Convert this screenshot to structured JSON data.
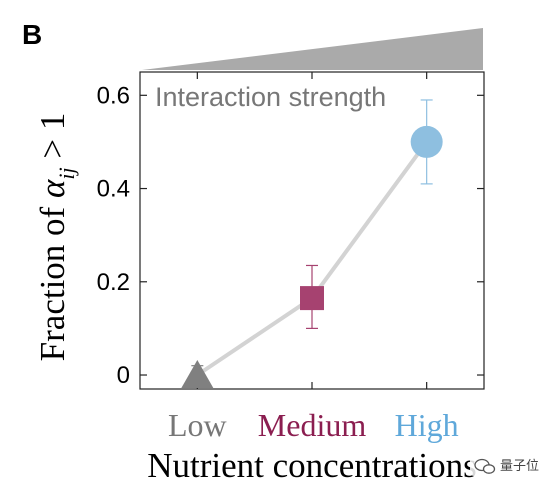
{
  "panel_label": "B",
  "chart_data": {
    "type": "line",
    "categories": [
      "Low",
      "Medium",
      "High"
    ],
    "x": [
      1,
      2,
      3
    ],
    "values": [
      0.0,
      0.165,
      0.5
    ],
    "error_low": [
      0.02,
      0.065,
      0.09
    ],
    "error_high": [
      0.02,
      0.07,
      0.09
    ],
    "markers": [
      "triangle",
      "square",
      "circle"
    ],
    "colors": [
      "#808080",
      "#A64270",
      "#8EBFE0"
    ],
    "line_color": "#D3D3D3",
    "label_colors": [
      "#777777",
      "#8B1E50",
      "#5FA8DA"
    ],
    "ylim": [
      -0.03,
      0.65
    ],
    "yticks": [
      0,
      0.2,
      0.4,
      0.6
    ],
    "ytick_labels": [
      "0",
      "0.2",
      "0.4",
      "0.6"
    ],
    "ylabel_text": "Fraction of ",
    "ylabel_symbol": "α",
    "ylabel_subscript": "ij",
    "ylabel_suffix": " > 1",
    "xlabel": "Nutrient concentrations",
    "annotation": "Interaction strength",
    "grid": false
  },
  "watermark": {
    "text": "量子位",
    "icon": "wechat-icon"
  }
}
